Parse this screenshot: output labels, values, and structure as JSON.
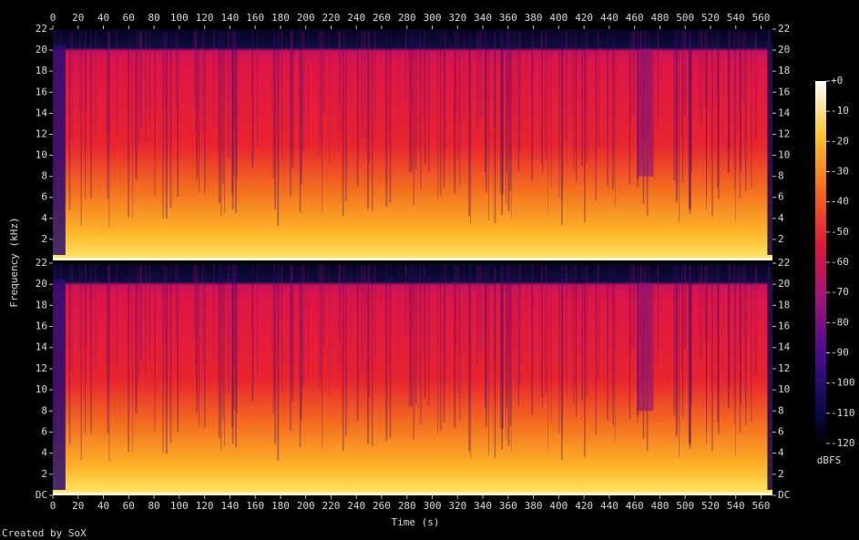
{
  "chart_data": {
    "type": "spectrogram",
    "x_label": "Time (s)",
    "y_label": "Frequency (kHz)",
    "xlim": [
      0,
      569
    ],
    "xticks": [
      0,
      20,
      40,
      60,
      80,
      100,
      120,
      140,
      160,
      180,
      200,
      220,
      240,
      260,
      280,
      300,
      320,
      340,
      360,
      380,
      400,
      420,
      440,
      460,
      480,
      500,
      520,
      540,
      560
    ],
    "ylim": [
      0,
      22
    ],
    "channels": [
      {
        "yticks": [
          2,
          4,
          6,
          8,
          10,
          12,
          14,
          16,
          18,
          20,
          22
        ]
      },
      {
        "yticks": [
          {
            "value": 0,
            "label": "DC"
          },
          2,
          4,
          6,
          8,
          10,
          12,
          14,
          16,
          18,
          20,
          22
        ]
      }
    ],
    "colorbar": {
      "label": "dBFS",
      "lim": [
        -120,
        0
      ],
      "ticks": [
        {
          "value": 0,
          "label": "+0"
        },
        -10,
        -20,
        -30,
        -40,
        -50,
        -60,
        -70,
        -80,
        -90,
        -100,
        -110,
        -120
      ]
    }
  },
  "footer": "Created by SoX"
}
